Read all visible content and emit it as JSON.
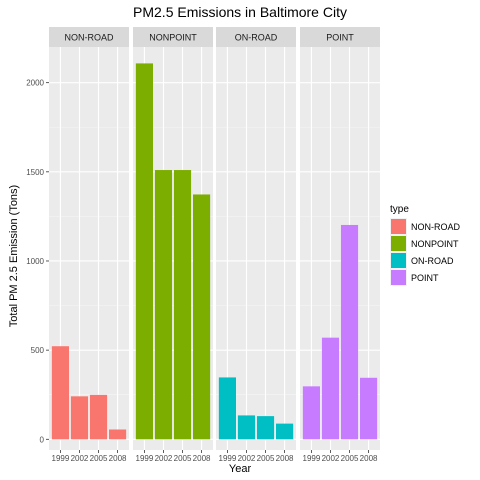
{
  "chart_data": {
    "type": "bar",
    "title": "PM2.5 Emissions in Baltimore City",
    "xlabel": "Year",
    "ylabel": "Total PM 2.5 Emission (Tons)",
    "facet_by": "type",
    "categories": [
      "1999",
      "2002",
      "2005",
      "2008"
    ],
    "ylim": [
      -60,
      2200
    ],
    "yticks": [
      0,
      500,
      1000,
      1500,
      2000
    ],
    "grid": true,
    "legend": {
      "title": "type",
      "placement": "right"
    },
    "series": [
      {
        "name": "NON-ROAD",
        "color": "#F8766D",
        "values": [
          522,
          241,
          249,
          55
        ]
      },
      {
        "name": "NONPOINT",
        "color": "#7CAE00",
        "values": [
          2108,
          1510,
          1510,
          1373
        ]
      },
      {
        "name": "ON-ROAD",
        "color": "#00BFC4",
        "values": [
          347,
          134,
          130,
          88
        ]
      },
      {
        "name": "POINT",
        "color": "#C77CFF",
        "values": [
          297,
          570,
          1202,
          345
        ]
      }
    ]
  }
}
